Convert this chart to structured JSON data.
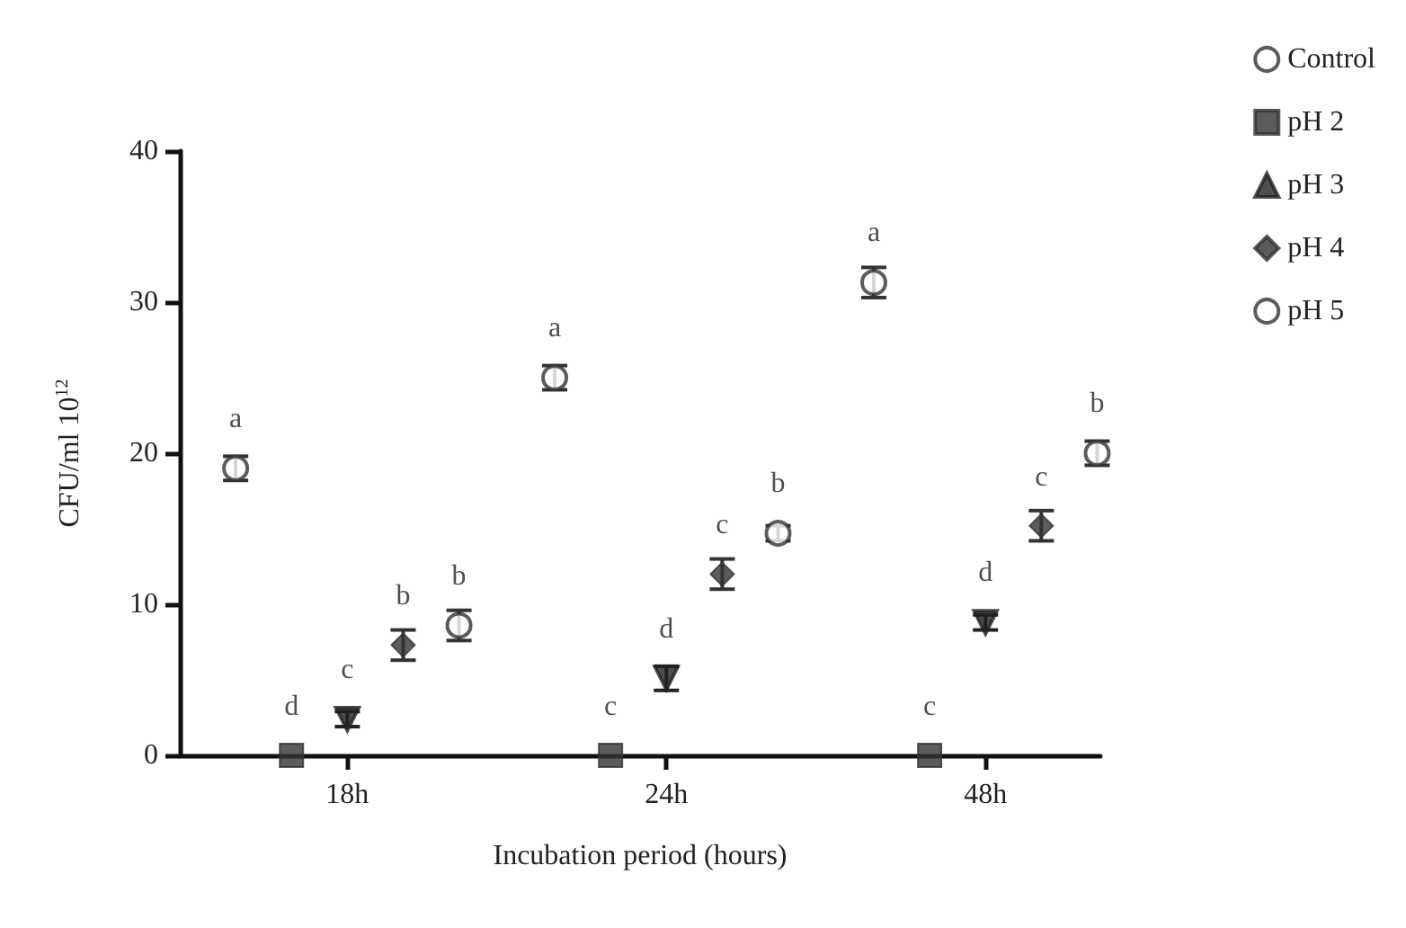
{
  "chart_data": {
    "type": "scatter",
    "xlabel": "Incubation period (hours)",
    "ylabel": "CFU/ml 10$^{12}$",
    "categories": [
      "18h",
      "24h",
      "48h"
    ],
    "series": [
      {
        "name": "Control",
        "color": "#333333",
        "marker": "circle",
        "values": [
          19,
          25,
          31.3
        ],
        "errors": [
          0.8,
          0.8,
          1.0
        ],
        "value_labels": [
          "a",
          "a",
          "a"
        ]
      },
      {
        "name": "pH 2",
        "color": "#333333",
        "marker": "square",
        "values": [
          0,
          0,
          0
        ],
        "errors": [
          null,
          null,
          null
        ],
        "value_labels": [
          "d",
          "c",
          "c"
        ]
      },
      {
        "name": "pH 3",
        "color": "#222222",
        "marker": "triangle",
        "values": [
          2.4,
          5.1,
          8.8
        ],
        "errors": [
          0.5,
          0.8,
          0.5
        ],
        "value_labels": [
          "c",
          "d",
          "d"
        ]
      },
      {
        "name": "pH 4",
        "color": "#333333",
        "marker": "diamond",
        "values": [
          7.3,
          12,
          15.2
        ],
        "errors": [
          1.0,
          1.0,
          1.0
        ],
        "value_labels": [
          "b",
          "c",
          "c"
        ]
      },
      {
        "name": "pH 5",
        "color": "#333333",
        "marker": "circle",
        "values": [
          8.6,
          14.7,
          20
        ],
        "errors": [
          1.0,
          0.5,
          0.8
        ],
        "value_labels": [
          "b",
          "b",
          "b"
        ]
      }
    ],
    "ylim": [
      0,
      40
    ],
    "yticks": [
      0,
      10,
      20,
      30,
      40
    ],
    "grid": false,
    "legend": "top right"
  }
}
